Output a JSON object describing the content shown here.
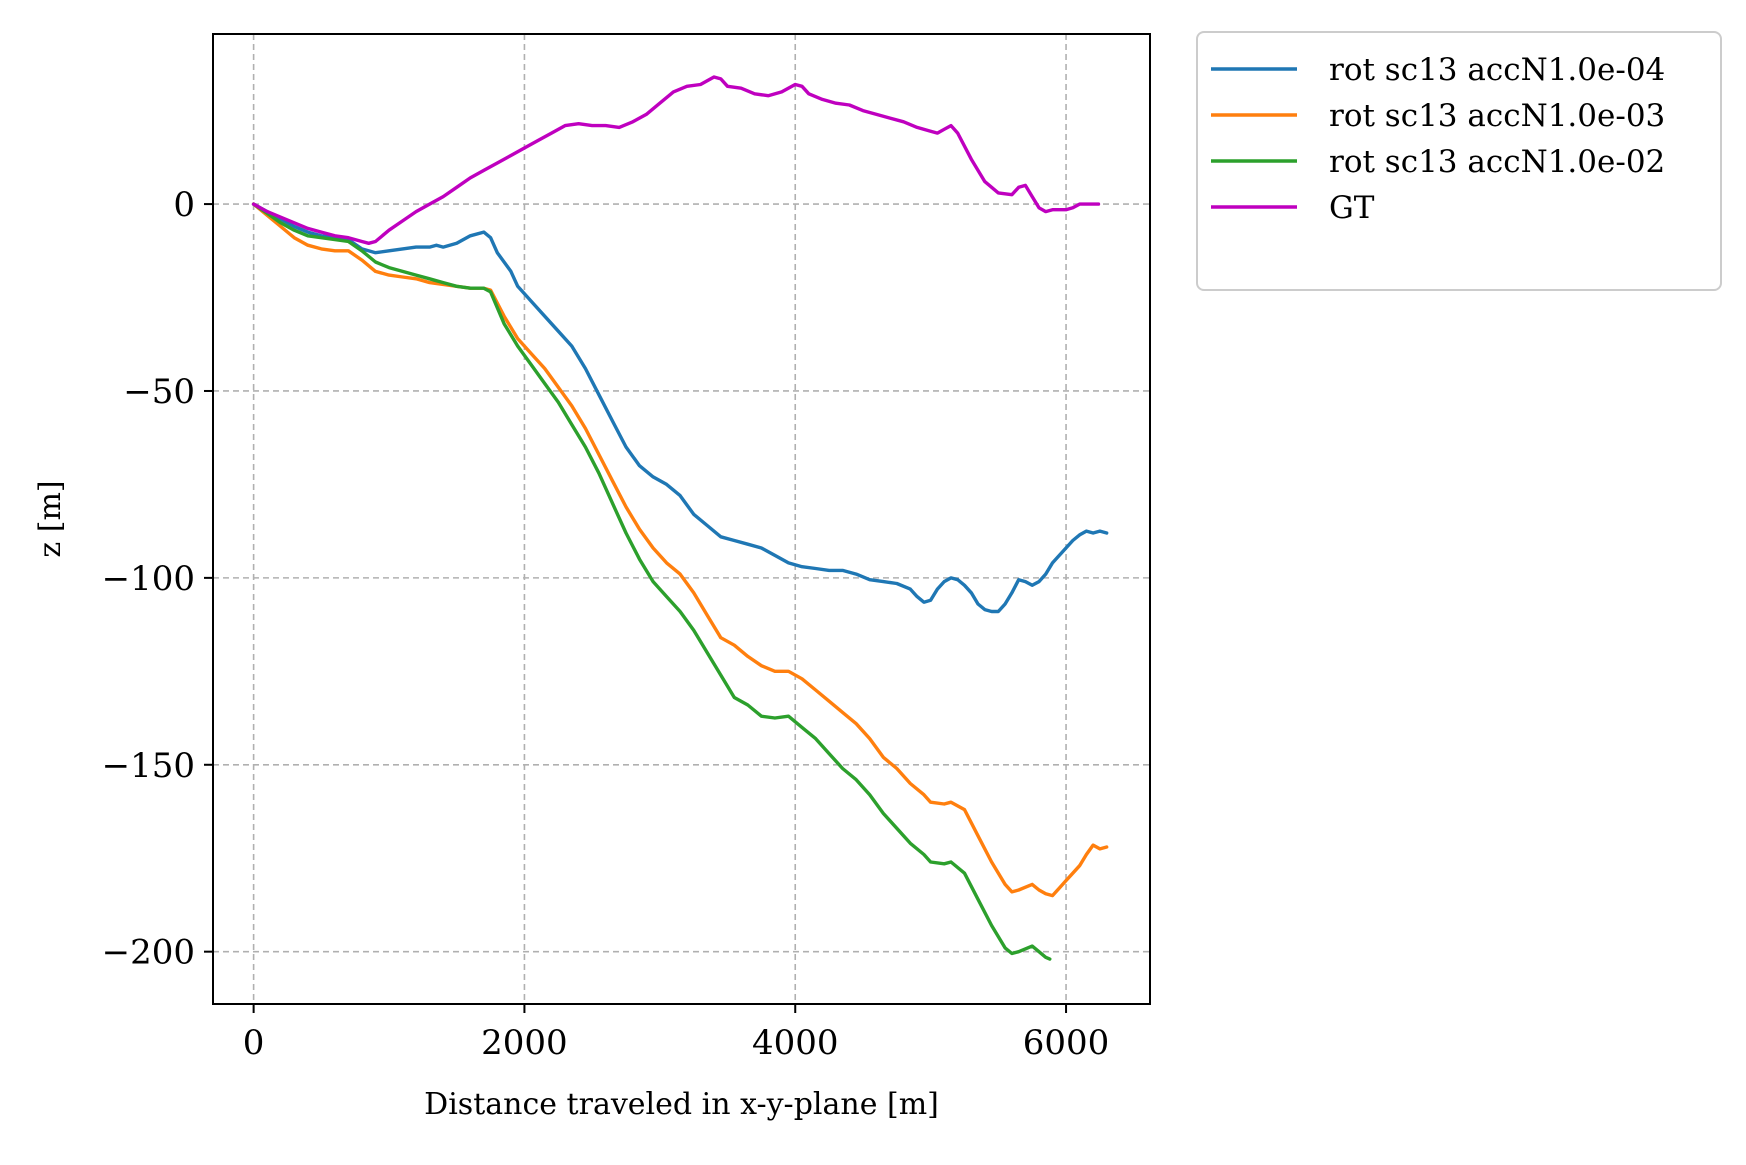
{
  "chart_data": {
    "type": "line",
    "title": "",
    "xlabel": "Distance traveled in x-y-plane [m]",
    "ylabel": "z [m]",
    "xlim": [
      -300,
      6620
    ],
    "ylim": [
      -214,
      45.5
    ],
    "xticks": [
      0,
      2000,
      4000,
      6000
    ],
    "xtick_labels": [
      "0",
      "2000",
      "4000",
      "6000"
    ],
    "yticks": [
      0,
      -50,
      -100,
      -150,
      -200
    ],
    "ytick_labels": [
      "0",
      "−50",
      "−100",
      "−150",
      "−200"
    ],
    "grid": true,
    "legend_position": "outside-top-right",
    "series": [
      {
        "name": "rot sc13 accN1.0e-04",
        "color": "#1f77b4",
        "points": [
          [
            0,
            0
          ],
          [
            100,
            -2
          ],
          [
            200,
            -4
          ],
          [
            300,
            -6
          ],
          [
            400,
            -7.5
          ],
          [
            500,
            -8.5
          ],
          [
            600,
            -9
          ],
          [
            700,
            -9.5
          ],
          [
            800,
            -12
          ],
          [
            900,
            -13
          ],
          [
            1000,
            -12.5
          ],
          [
            1100,
            -12
          ],
          [
            1200,
            -11.5
          ],
          [
            1300,
            -11.5
          ],
          [
            1350,
            -11
          ],
          [
            1400,
            -11.5
          ],
          [
            1500,
            -10.5
          ],
          [
            1600,
            -8.5
          ],
          [
            1700,
            -7.5
          ],
          [
            1750,
            -9
          ],
          [
            1800,
            -13
          ],
          [
            1900,
            -18
          ],
          [
            1950,
            -22
          ],
          [
            2050,
            -26
          ],
          [
            2150,
            -30
          ],
          [
            2250,
            -34
          ],
          [
            2350,
            -38
          ],
          [
            2450,
            -44
          ],
          [
            2550,
            -51
          ],
          [
            2650,
            -58
          ],
          [
            2750,
            -65
          ],
          [
            2850,
            -70
          ],
          [
            2950,
            -73
          ],
          [
            3050,
            -75
          ],
          [
            3150,
            -78
          ],
          [
            3250,
            -83
          ],
          [
            3350,
            -86
          ],
          [
            3450,
            -89
          ],
          [
            3550,
            -90
          ],
          [
            3650,
            -91
          ],
          [
            3750,
            -92
          ],
          [
            3850,
            -94
          ],
          [
            3950,
            -96
          ],
          [
            4050,
            -97
          ],
          [
            4150,
            -97.5
          ],
          [
            4250,
            -98
          ],
          [
            4350,
            -98
          ],
          [
            4450,
            -99
          ],
          [
            4550,
            -100.5
          ],
          [
            4650,
            -101
          ],
          [
            4750,
            -101.5
          ],
          [
            4850,
            -103
          ],
          [
            4900,
            -105
          ],
          [
            4950,
            -106.5
          ],
          [
            5000,
            -106
          ],
          [
            5050,
            -103
          ],
          [
            5100,
            -101
          ],
          [
            5150,
            -100
          ],
          [
            5200,
            -100.5
          ],
          [
            5250,
            -102
          ],
          [
            5300,
            -104
          ],
          [
            5350,
            -107
          ],
          [
            5400,
            -108.5
          ],
          [
            5450,
            -109
          ],
          [
            5500,
            -109
          ],
          [
            5550,
            -107
          ],
          [
            5600,
            -104
          ],
          [
            5650,
            -100.5
          ],
          [
            5700,
            -101
          ],
          [
            5750,
            -102
          ],
          [
            5800,
            -101
          ],
          [
            5850,
            -99
          ],
          [
            5900,
            -96
          ],
          [
            5950,
            -94
          ],
          [
            6000,
            -92
          ],
          [
            6050,
            -90
          ],
          [
            6100,
            -88.5
          ],
          [
            6150,
            -87.5
          ],
          [
            6200,
            -88
          ],
          [
            6250,
            -87.5
          ],
          [
            6300,
            -88
          ]
        ]
      },
      {
        "name": "rot sc13 accN1.0e-03",
        "color": "#ff7f0e",
        "points": [
          [
            0,
            0
          ],
          [
            100,
            -3
          ],
          [
            200,
            -6
          ],
          [
            300,
            -9
          ],
          [
            400,
            -11
          ],
          [
            500,
            -12
          ],
          [
            600,
            -12.5
          ],
          [
            700,
            -12.5
          ],
          [
            800,
            -15
          ],
          [
            900,
            -18
          ],
          [
            1000,
            -19
          ],
          [
            1100,
            -19.5
          ],
          [
            1200,
            -20
          ],
          [
            1300,
            -21
          ],
          [
            1400,
            -21.5
          ],
          [
            1500,
            -22
          ],
          [
            1600,
            -22.5
          ],
          [
            1700,
            -22.5
          ],
          [
            1750,
            -23
          ],
          [
            1850,
            -30
          ],
          [
            1950,
            -36
          ],
          [
            2050,
            -40
          ],
          [
            2150,
            -44
          ],
          [
            2250,
            -49
          ],
          [
            2350,
            -54
          ],
          [
            2450,
            -60
          ],
          [
            2550,
            -67
          ],
          [
            2650,
            -74
          ],
          [
            2750,
            -81
          ],
          [
            2850,
            -87
          ],
          [
            2950,
            -92
          ],
          [
            3050,
            -96
          ],
          [
            3150,
            -99
          ],
          [
            3250,
            -104
          ],
          [
            3350,
            -110
          ],
          [
            3450,
            -116
          ],
          [
            3550,
            -118
          ],
          [
            3650,
            -121
          ],
          [
            3750,
            -123.5
          ],
          [
            3850,
            -125
          ],
          [
            3950,
            -125
          ],
          [
            4050,
            -127
          ],
          [
            4150,
            -130
          ],
          [
            4250,
            -133
          ],
          [
            4350,
            -136
          ],
          [
            4450,
            -139
          ],
          [
            4550,
            -143
          ],
          [
            4650,
            -148
          ],
          [
            4750,
            -151
          ],
          [
            4850,
            -155
          ],
          [
            4950,
            -158
          ],
          [
            5000,
            -160
          ],
          [
            5100,
            -160.5
          ],
          [
            5150,
            -160
          ],
          [
            5250,
            -162
          ],
          [
            5350,
            -169
          ],
          [
            5450,
            -176
          ],
          [
            5550,
            -182
          ],
          [
            5600,
            -184
          ],
          [
            5650,
            -183.5
          ],
          [
            5750,
            -182
          ],
          [
            5800,
            -183.5
          ],
          [
            5850,
            -184.5
          ],
          [
            5900,
            -185
          ],
          [
            5950,
            -183
          ],
          [
            6000,
            -181
          ],
          [
            6050,
            -179
          ],
          [
            6100,
            -177
          ],
          [
            6150,
            -174
          ],
          [
            6200,
            -171.5
          ],
          [
            6250,
            -172.5
          ],
          [
            6300,
            -172
          ]
        ]
      },
      {
        "name": "rot sc13 accN1.0e-02",
        "color": "#2ca02c",
        "points": [
          [
            0,
            0
          ],
          [
            100,
            -2.5
          ],
          [
            200,
            -5
          ],
          [
            300,
            -7
          ],
          [
            400,
            -8.5
          ],
          [
            500,
            -9
          ],
          [
            600,
            -9.5
          ],
          [
            700,
            -10
          ],
          [
            800,
            -12.5
          ],
          [
            900,
            -15.5
          ],
          [
            1000,
            -17
          ],
          [
            1100,
            -18
          ],
          [
            1200,
            -19
          ],
          [
            1300,
            -20
          ],
          [
            1400,
            -21
          ],
          [
            1500,
            -22
          ],
          [
            1600,
            -22.5
          ],
          [
            1700,
            -22.5
          ],
          [
            1750,
            -23.5
          ],
          [
            1850,
            -32
          ],
          [
            1950,
            -38
          ],
          [
            2050,
            -43
          ],
          [
            2150,
            -48
          ],
          [
            2250,
            -53
          ],
          [
            2350,
            -59
          ],
          [
            2450,
            -65
          ],
          [
            2550,
            -72
          ],
          [
            2650,
            -80
          ],
          [
            2750,
            -88
          ],
          [
            2850,
            -95
          ],
          [
            2950,
            -101
          ],
          [
            3050,
            -105
          ],
          [
            3150,
            -109
          ],
          [
            3250,
            -114
          ],
          [
            3350,
            -120
          ],
          [
            3450,
            -126
          ],
          [
            3550,
            -132
          ],
          [
            3650,
            -134
          ],
          [
            3750,
            -137
          ],
          [
            3850,
            -137.5
          ],
          [
            3950,
            -137
          ],
          [
            4050,
            -140
          ],
          [
            4150,
            -143
          ],
          [
            4250,
            -147
          ],
          [
            4350,
            -151
          ],
          [
            4450,
            -154
          ],
          [
            4550,
            -158
          ],
          [
            4650,
            -163
          ],
          [
            4750,
            -167
          ],
          [
            4850,
            -171
          ],
          [
            4950,
            -174
          ],
          [
            5000,
            -176
          ],
          [
            5100,
            -176.5
          ],
          [
            5150,
            -176
          ],
          [
            5250,
            -179
          ],
          [
            5350,
            -186
          ],
          [
            5450,
            -193
          ],
          [
            5550,
            -199
          ],
          [
            5600,
            -200.5
          ],
          [
            5650,
            -200
          ],
          [
            5750,
            -198.5
          ],
          [
            5800,
            -200
          ],
          [
            5850,
            -201.5
          ],
          [
            5880,
            -202
          ]
        ]
      },
      {
        "name": "GT",
        "color": "#bf00bf",
        "points": [
          [
            0,
            0
          ],
          [
            100,
            -2
          ],
          [
            200,
            -3.5
          ],
          [
            300,
            -5
          ],
          [
            400,
            -6.5
          ],
          [
            500,
            -7.5
          ],
          [
            600,
            -8.5
          ],
          [
            700,
            -9
          ],
          [
            800,
            -10
          ],
          [
            850,
            -10.5
          ],
          [
            900,
            -10
          ],
          [
            1000,
            -7
          ],
          [
            1100,
            -4.5
          ],
          [
            1200,
            -2
          ],
          [
            1300,
            0
          ],
          [
            1400,
            2
          ],
          [
            1500,
            4.5
          ],
          [
            1600,
            7
          ],
          [
            1700,
            9
          ],
          [
            1800,
            11
          ],
          [
            1900,
            13
          ],
          [
            2000,
            15
          ],
          [
            2100,
            17
          ],
          [
            2200,
            19
          ],
          [
            2300,
            21
          ],
          [
            2400,
            21.5
          ],
          [
            2500,
            21
          ],
          [
            2600,
            21
          ],
          [
            2700,
            20.5
          ],
          [
            2800,
            22
          ],
          [
            2900,
            24
          ],
          [
            3000,
            27
          ],
          [
            3100,
            30
          ],
          [
            3200,
            31.5
          ],
          [
            3300,
            32
          ],
          [
            3400,
            34
          ],
          [
            3450,
            33.5
          ],
          [
            3500,
            31.5
          ],
          [
            3600,
            31
          ],
          [
            3700,
            29.5
          ],
          [
            3800,
            29
          ],
          [
            3900,
            30
          ],
          [
            4000,
            32
          ],
          [
            4050,
            31.5
          ],
          [
            4100,
            29.5
          ],
          [
            4200,
            28
          ],
          [
            4300,
            27
          ],
          [
            4400,
            26.5
          ],
          [
            4500,
            25
          ],
          [
            4600,
            24
          ],
          [
            4700,
            23
          ],
          [
            4800,
            22
          ],
          [
            4900,
            20.5
          ],
          [
            5000,
            19.5
          ],
          [
            5050,
            19
          ],
          [
            5100,
            20
          ],
          [
            5150,
            21
          ],
          [
            5200,
            19
          ],
          [
            5300,
            12
          ],
          [
            5400,
            6
          ],
          [
            5500,
            3
          ],
          [
            5600,
            2.5
          ],
          [
            5650,
            4.5
          ],
          [
            5700,
            5
          ],
          [
            5750,
            2
          ],
          [
            5800,
            -1
          ],
          [
            5850,
            -2
          ],
          [
            5900,
            -1.5
          ],
          [
            6000,
            -1.5
          ],
          [
            6050,
            -1
          ],
          [
            6100,
            0
          ],
          [
            6150,
            0
          ],
          [
            6200,
            0
          ],
          [
            6240,
            0
          ]
        ]
      }
    ]
  }
}
